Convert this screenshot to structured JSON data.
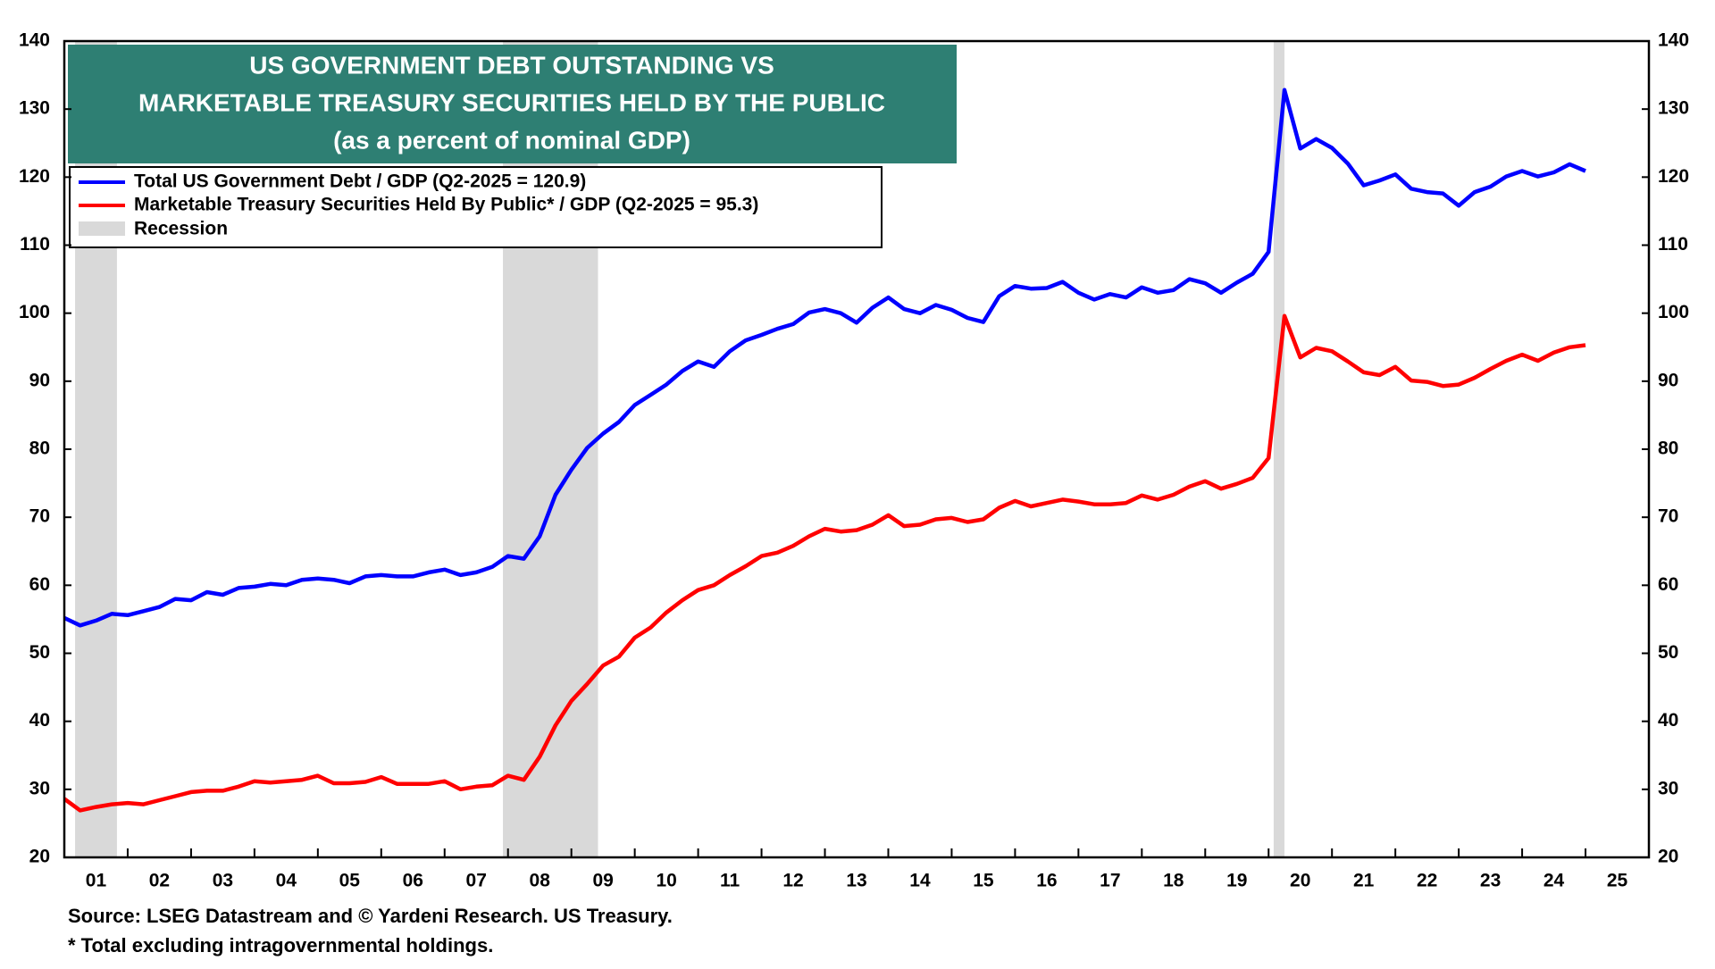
{
  "chart_data": {
    "type": "line",
    "title": [
      "US GOVERNMENT DEBT OUTSTANDING VS",
      "MARKETABLE TREASURY SECURITIES HELD BY THE PUBLIC",
      "(as a percent of nominal GDP)"
    ],
    "source": "Source: LSEG Datastream and © Yardeni Research. US Treasury.",
    "note": "* Total excluding intragovernmental holdings.",
    "title_box_color": "#2e7f73",
    "x": [
      2001,
      2001.25,
      2001.5,
      2001.75,
      2002,
      2002.25,
      2002.5,
      2002.75,
      2003,
      2003.25,
      2003.5,
      2003.75,
      2004,
      2004.25,
      2004.5,
      2004.75,
      2005,
      2005.25,
      2005.5,
      2005.75,
      2006,
      2006.25,
      2006.5,
      2006.75,
      2007,
      2007.25,
      2007.5,
      2007.75,
      2008,
      2008.25,
      2008.5,
      2008.75,
      2009,
      2009.25,
      2009.5,
      2009.75,
      2010,
      2010.25,
      2010.5,
      2010.75,
      2011,
      2011.25,
      2011.5,
      2011.75,
      2012,
      2012.25,
      2012.5,
      2012.75,
      2013,
      2013.25,
      2013.5,
      2013.75,
      2014,
      2014.25,
      2014.5,
      2014.75,
      2015,
      2015.25,
      2015.5,
      2015.75,
      2016,
      2016.25,
      2016.5,
      2016.75,
      2017,
      2017.25,
      2017.5,
      2017.75,
      2018,
      2018.25,
      2018.5,
      2018.75,
      2019,
      2019.25,
      2019.5,
      2019.75,
      2020,
      2020.25,
      2020.5,
      2020.75,
      2021,
      2021.25,
      2021.5,
      2021.75,
      2022,
      2022.25,
      2022.5,
      2022.75,
      2023,
      2023.25,
      2023.5,
      2023.75,
      2024,
      2024.25,
      2024.5,
      2024.75,
      2025
    ],
    "series": [
      {
        "name": "Total US Government Debt / GDP (Q2-2025 = 120.9)",
        "color": "#0000ff",
        "values": [
          55.2,
          54.1,
          54.8,
          55.8,
          55.6,
          56.2,
          56.8,
          58.0,
          57.8,
          59.0,
          58.6,
          59.6,
          59.8,
          60.2,
          60.0,
          60.8,
          61.0,
          60.8,
          60.3,
          61.3,
          61.5,
          61.3,
          61.3,
          61.9,
          62.3,
          61.5,
          61.9,
          62.7,
          64.3,
          63.9,
          67.2,
          73.3,
          77.0,
          80.2,
          82.3,
          84.0,
          86.5,
          88.0,
          89.5,
          91.5,
          92.9,
          92.1,
          94.4,
          96.0,
          96.8,
          97.7,
          98.4,
          100.1,
          100.6,
          100.0,
          98.6,
          100.8,
          102.3,
          100.6,
          100.0,
          101.2,
          100.5,
          99.3,
          98.7,
          102.5,
          104.0,
          103.6,
          103.7,
          104.6,
          103.0,
          102.0,
          102.8,
          102.3,
          103.8,
          103.0,
          103.4,
          105.0,
          104.4,
          103.0,
          104.5,
          105.8,
          109.0,
          132.8,
          124.2,
          125.6,
          124.3,
          122.0,
          118.8,
          119.5,
          120.4,
          118.3,
          117.8,
          117.6,
          115.8,
          117.8,
          118.6,
          120.1,
          120.9,
          120.1,
          120.7,
          121.9,
          120.9
        ]
      },
      {
        "name": "Marketable Treasury Securities Held By Public* / GDP (Q2-2025 = 95.3)",
        "color": "#ff0000",
        "values": [
          28.6,
          26.9,
          27.4,
          27.8,
          28.0,
          27.8,
          28.4,
          29.0,
          29.6,
          29.8,
          29.8,
          30.4,
          31.2,
          31.0,
          31.2,
          31.4,
          32.0,
          30.9,
          30.9,
          31.1,
          31.8,
          30.8,
          30.8,
          30.8,
          31.2,
          30.0,
          30.4,
          30.6,
          32.0,
          31.4,
          34.8,
          39.4,
          43.0,
          45.5,
          48.2,
          49.5,
          52.3,
          53.8,
          56.0,
          57.8,
          59.3,
          60.0,
          61.5,
          62.8,
          64.3,
          64.8,
          65.8,
          67.2,
          68.3,
          67.9,
          68.1,
          68.9,
          70.3,
          68.7,
          68.9,
          69.7,
          69.9,
          69.3,
          69.7,
          71.4,
          72.4,
          71.6,
          72.1,
          72.6,
          72.3,
          71.9,
          71.9,
          72.1,
          73.2,
          72.6,
          73.3,
          74.5,
          75.3,
          74.2,
          74.9,
          75.8,
          78.7,
          99.6,
          93.5,
          94.9,
          94.4,
          92.9,
          91.3,
          90.9,
          92.1,
          90.1,
          89.9,
          89.3,
          89.5,
          90.5,
          91.8,
          93.0,
          93.9,
          93.0,
          94.2,
          95.0,
          95.3
        ]
      }
    ],
    "recession": {
      "name": "Recession",
      "color": "#d9d9d9",
      "periods": [
        [
          2001.17,
          2001.83
        ],
        [
          2007.92,
          2009.42
        ],
        [
          2020.08,
          2020.25
        ]
      ]
    },
    "xlim": [
      2001,
      2026
    ],
    "xticks": [
      {
        "value": 2001.5,
        "label": "01"
      },
      {
        "value": 2002.5,
        "label": "02"
      },
      {
        "value": 2003.5,
        "label": "03"
      },
      {
        "value": 2004.5,
        "label": "04"
      },
      {
        "value": 2005.5,
        "label": "05"
      },
      {
        "value": 2006.5,
        "label": "06"
      },
      {
        "value": 2007.5,
        "label": "07"
      },
      {
        "value": 2008.5,
        "label": "08"
      },
      {
        "value": 2009.5,
        "label": "09"
      },
      {
        "value": 2010.5,
        "label": "10"
      },
      {
        "value": 2011.5,
        "label": "11"
      },
      {
        "value": 2012.5,
        "label": "12"
      },
      {
        "value": 2013.5,
        "label": "13"
      },
      {
        "value": 2014.5,
        "label": "14"
      },
      {
        "value": 2015.5,
        "label": "15"
      },
      {
        "value": 2016.5,
        "label": "16"
      },
      {
        "value": 2017.5,
        "label": "17"
      },
      {
        "value": 2018.5,
        "label": "18"
      },
      {
        "value": 2019.5,
        "label": "19"
      },
      {
        "value": 2020.5,
        "label": "20"
      },
      {
        "value": 2021.5,
        "label": "21"
      },
      {
        "value": 2022.5,
        "label": "22"
      },
      {
        "value": 2023.5,
        "label": "23"
      },
      {
        "value": 2024.5,
        "label": "24"
      },
      {
        "value": 2025.5,
        "label": "25"
      }
    ],
    "ylim": [
      20,
      140
    ],
    "yticks": [
      20,
      30,
      40,
      50,
      60,
      70,
      80,
      90,
      100,
      110,
      120,
      130,
      140
    ]
  }
}
